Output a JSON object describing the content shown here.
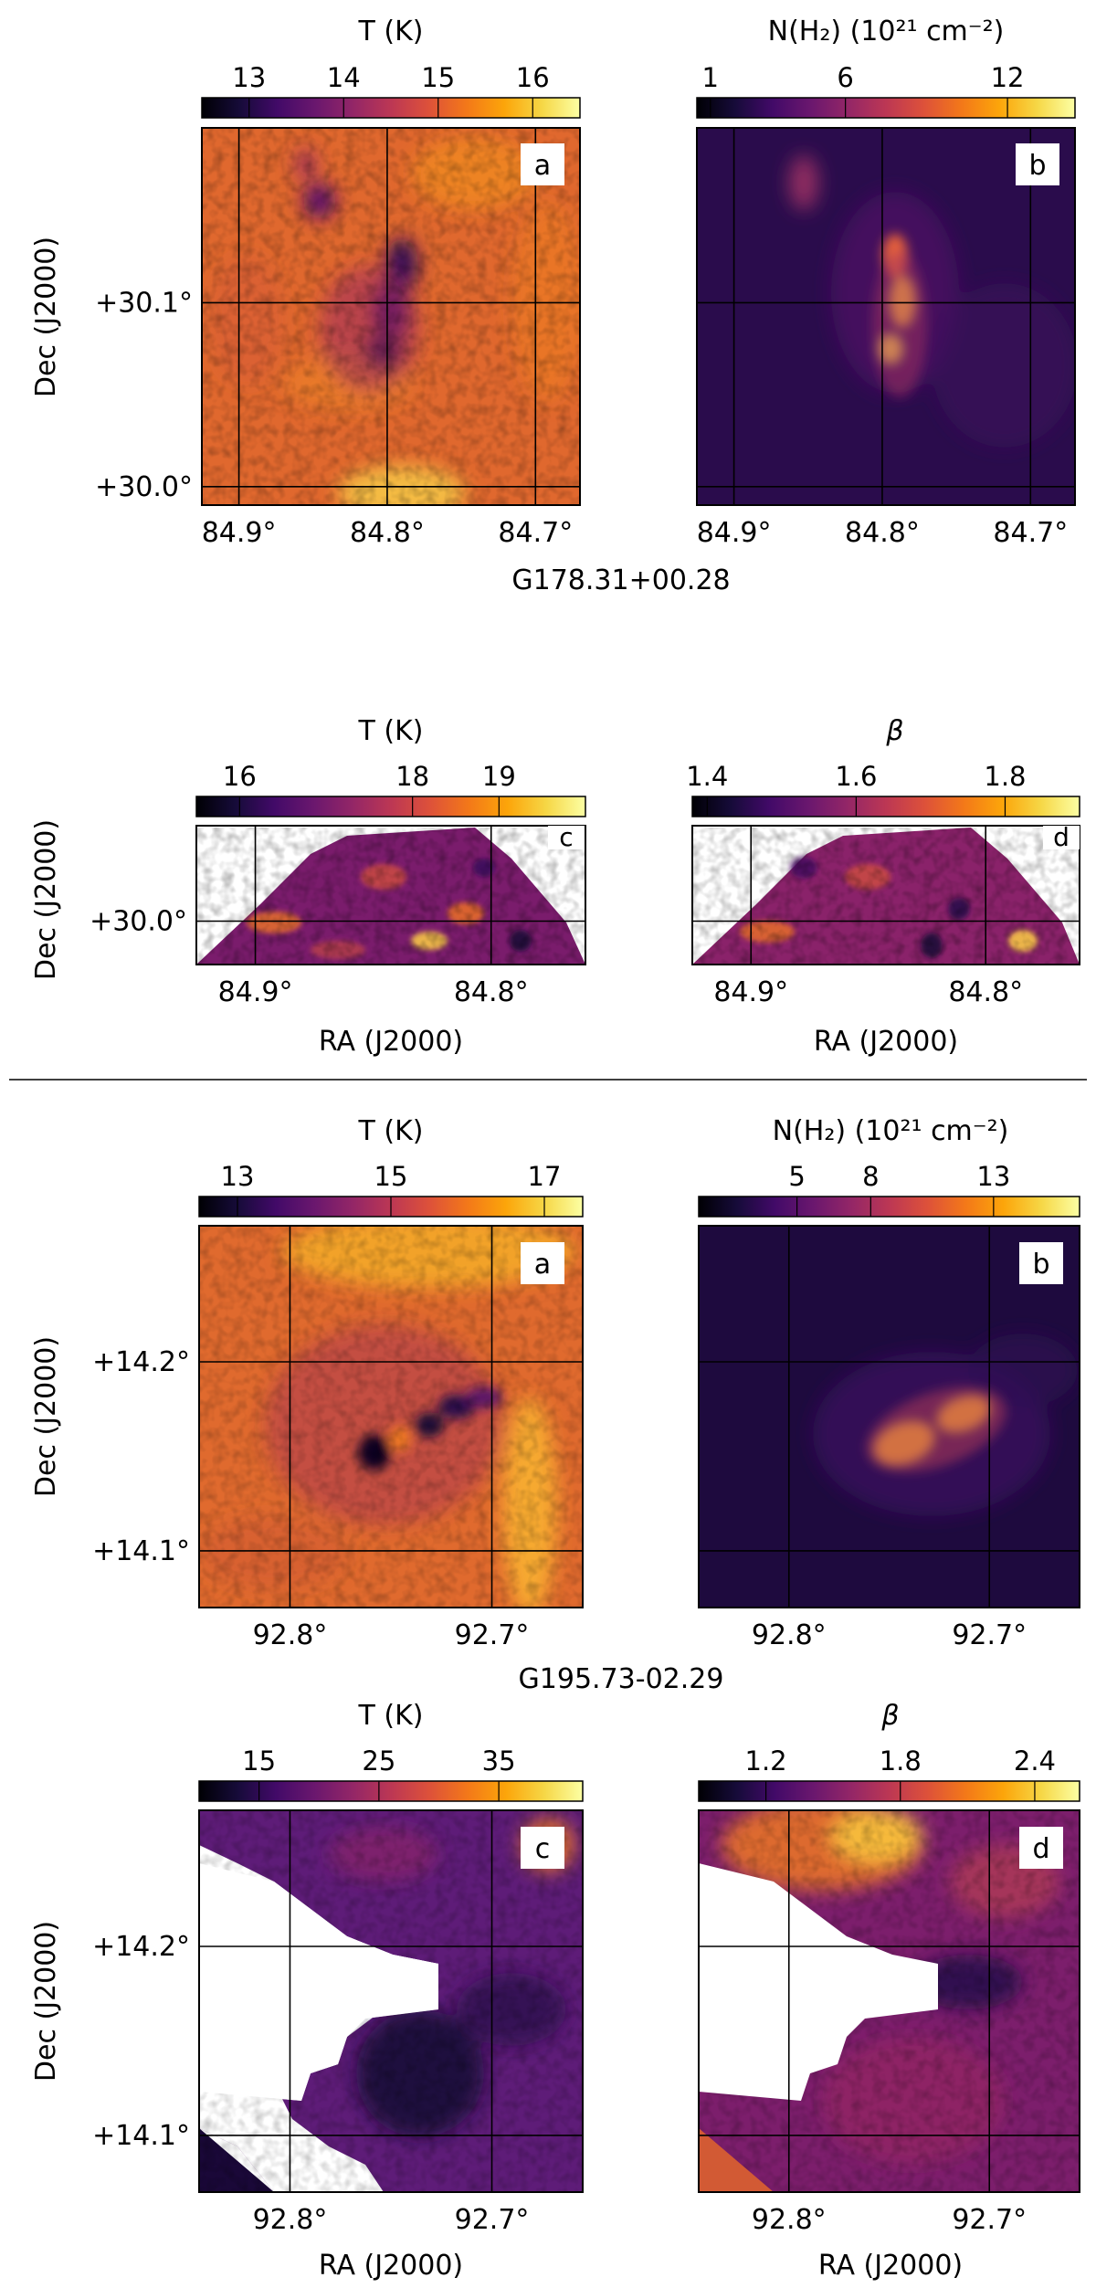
{
  "figure": {
    "source_name_1": "G178.31+00.28",
    "source_name_2": "G195.73-02.29",
    "ra_label": "RA (J2000)",
    "dec_label": "Dec (J2000)"
  },
  "colors": {
    "background": "#ffffff",
    "divider": "#000000",
    "grid": "#000000",
    "colormap": "inferno"
  },
  "panels": [
    {
      "id": "g178-a",
      "letter": "a",
      "colorbar": {
        "label": "T (K)",
        "label_html": false,
        "range": [
          12.5,
          16.5
        ],
        "ticks": [
          "13",
          "14",
          "15",
          "16"
        ],
        "tick_values": [
          13,
          14,
          15,
          16
        ]
      },
      "xticks": [
        "84.9°",
        "84.8°",
        "84.7°"
      ],
      "xtick_values": [
        84.9,
        84.8,
        84.7
      ],
      "yticks": [
        "+30.1°",
        "+30.0°"
      ],
      "ytick_values": [
        30.1,
        30.0
      ],
      "show_dec": true,
      "show_ra": false
    },
    {
      "id": "g178-b",
      "letter": "b",
      "colorbar": {
        "label": "N(H₂) (10²¹ cm⁻²)",
        "range": [
          0.5,
          14.5
        ],
        "ticks": [
          "1",
          "6",
          "12"
        ],
        "tick_values": [
          1,
          6,
          12
        ]
      },
      "xticks": [
        "84.9°",
        "84.8°",
        "84.7°"
      ],
      "xtick_values": [
        84.9,
        84.8,
        84.7
      ],
      "yticks": [],
      "ytick_values": [
        30.1,
        30.0
      ],
      "show_dec": false,
      "show_ra": false
    },
    {
      "id": "g178-c",
      "letter": "c",
      "colorbar": {
        "label": "T (K)",
        "range": [
          15.5,
          20.0
        ],
        "ticks": [
          "16",
          "18",
          "19"
        ],
        "tick_values": [
          16,
          18,
          19
        ]
      },
      "xticks": [
        "84.9°",
        "84.8°"
      ],
      "xtick_values": [
        84.9,
        84.8
      ],
      "yticks": [
        "+30.0°"
      ],
      "ytick_values": [
        30.0
      ],
      "show_dec": true,
      "show_ra": true
    },
    {
      "id": "g178-d",
      "letter": "d",
      "colorbar": {
        "label": "β",
        "range": [
          1.38,
          1.9
        ],
        "ticks": [
          "1.4",
          "1.6",
          "1.8"
        ],
        "tick_values": [
          1.4,
          1.6,
          1.8
        ]
      },
      "xticks": [
        "84.9°",
        "84.8°"
      ],
      "xtick_values": [
        84.9,
        84.8
      ],
      "yticks": [],
      "ytick_values": [
        30.0
      ],
      "show_dec": false,
      "show_ra": true
    },
    {
      "id": "g195-a",
      "letter": "a",
      "colorbar": {
        "label": "T (K)",
        "range": [
          12.5,
          17.5
        ],
        "ticks": [
          "13",
          "15",
          "17"
        ],
        "tick_values": [
          13,
          15,
          17
        ]
      },
      "xticks": [
        "92.8°",
        "92.7°"
      ],
      "xtick_values": [
        92.8,
        92.7
      ],
      "yticks": [
        "+14.2°",
        "+14.1°"
      ],
      "ytick_values": [
        14.2,
        14.1
      ],
      "show_dec": true,
      "show_ra": false
    },
    {
      "id": "g195-b",
      "letter": "b",
      "colorbar": {
        "label": "N(H₂) (10²¹ cm⁻²)",
        "range": [
          1.0,
          16.5
        ],
        "ticks": [
          "5",
          "8",
          "13"
        ],
        "tick_values": [
          5,
          8,
          13
        ]
      },
      "xticks": [
        "92.8°",
        "92.7°"
      ],
      "xtick_values": [
        92.8,
        92.7
      ],
      "yticks": [],
      "ytick_values": [
        14.2,
        14.1
      ],
      "show_dec": false,
      "show_ra": false
    },
    {
      "id": "g195-c",
      "letter": "c",
      "colorbar": {
        "label": "T (K)",
        "range": [
          10,
          42
        ],
        "ticks": [
          "15",
          "25",
          "35"
        ],
        "tick_values": [
          15,
          25,
          35
        ]
      },
      "xticks": [
        "92.8°",
        "92.7°"
      ],
      "xtick_values": [
        92.8,
        92.7
      ],
      "yticks": [
        "+14.2°",
        "+14.1°"
      ],
      "ytick_values": [
        14.2,
        14.1
      ],
      "show_dec": true,
      "show_ra": true
    },
    {
      "id": "g195-d",
      "letter": "d",
      "colorbar": {
        "label": "β",
        "range": [
          0.9,
          2.6
        ],
        "ticks": [
          "1.2",
          "1.8",
          "2.4"
        ],
        "tick_values": [
          1.2,
          1.8,
          2.4
        ]
      },
      "xticks": [
        "92.8°",
        "92.7°"
      ],
      "xtick_values": [
        92.8,
        92.7
      ],
      "yticks": [],
      "ytick_values": [
        14.2,
        14.1
      ],
      "show_dec": false,
      "show_ra": true
    }
  ]
}
